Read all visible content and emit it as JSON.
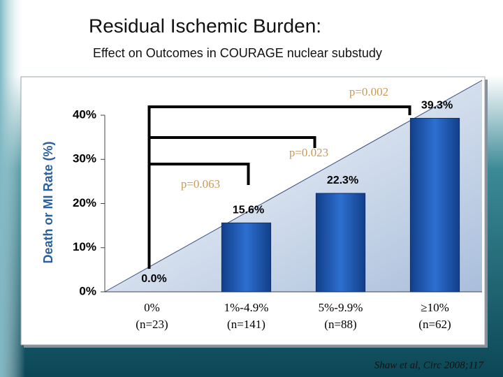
{
  "chart_data": {
    "type": "bar",
    "title": "Residual Ischemic Burden:",
    "subtitle": "Effect on Outcomes in COURAGE nuclear substudy",
    "y_label": "Death or MI Rate (%)",
    "categories": [
      "0%",
      "1%-4.9%",
      "5%-9.9%",
      "≥10%"
    ],
    "category_counts": [
      "(n=23)",
      "(n=141)",
      "(n=88)",
      "(n=62)"
    ],
    "values": [
      0,
      15.6,
      22.3,
      39.3
    ],
    "value_labels": [
      "0.0%",
      "15.6%",
      "22.3%",
      "39.3%"
    ],
    "color": "#1f57b0",
    "ylim": [
      0,
      40
    ],
    "yticks": [
      {
        "value": 0,
        "label": "0%"
      },
      {
        "value": 10,
        "label": "10%"
      },
      {
        "value": 20,
        "label": "20%"
      },
      {
        "value": 30,
        "label": "30%"
      },
      {
        "value": 40,
        "label": "40%"
      }
    ],
    "annotations": [
      "p=0.002",
      "p=0.023",
      "p=0.063"
    ],
    "source": "Shaw et al, Circ 2008;117"
  }
}
